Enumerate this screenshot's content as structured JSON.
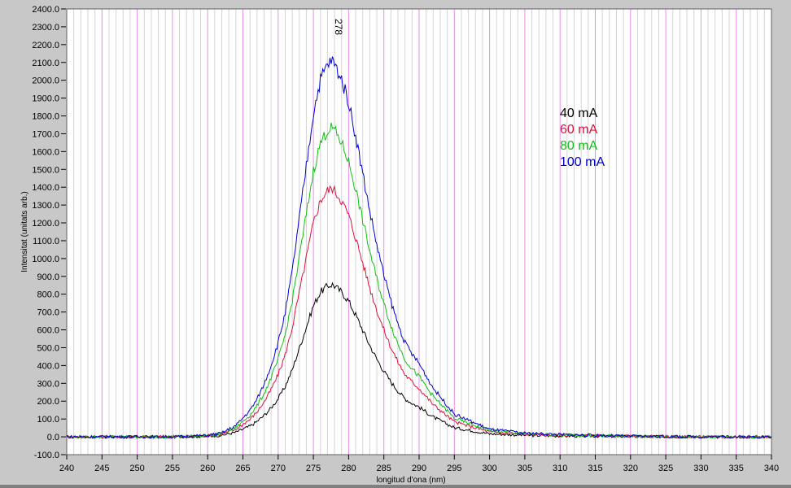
{
  "chart_data": {
    "type": "line",
    "title": "",
    "xlabel": "longitud d'ona (nm)",
    "ylabel": "Intensitat (unitats arb.)",
    "xlim": [
      240,
      340
    ],
    "ylim": [
      -100,
      2400
    ],
    "xticks": [
      240,
      245,
      250,
      255,
      260,
      265,
      270,
      275,
      280,
      285,
      290,
      295,
      300,
      305,
      310,
      315,
      320,
      325,
      330,
      335,
      340
    ],
    "yticks": [
      "-100.0",
      "0.0",
      "100.0",
      "200.0",
      "300.0",
      "400.0",
      "500.0",
      "600.0",
      "700.0",
      "800.0",
      "900.0",
      "1000.0",
      "1100.0",
      "1200.0",
      "1300.0",
      "1400.0",
      "1500.0",
      "1600.0",
      "1700.0",
      "1800.0",
      "1900.0",
      "2000.0",
      "2100.0",
      "2200.0",
      "2300.0",
      "2400.0"
    ],
    "grid": {
      "x_minor_step": 1,
      "x_major_step": 5,
      "major_color": "#e88ee8",
      "minor_color": "#d4d4d4"
    },
    "annotation": {
      "text": "278",
      "x": 278
    },
    "legend_position": "upper-right",
    "x": [
      240,
      245,
      250,
      255,
      260,
      262,
      264,
      265,
      266,
      267,
      268,
      269,
      270,
      271,
      272,
      273,
      274,
      275,
      276,
      277,
      277.7,
      278,
      279,
      280,
      281,
      282,
      283,
      284,
      285,
      286,
      287,
      288,
      289,
      290,
      292,
      295,
      300,
      305,
      310,
      320,
      330,
      340
    ],
    "series": [
      {
        "name": "40 mA",
        "color": "#000000",
        "values": [
          0,
          0,
          0,
          0,
          3,
          9,
          26,
          43,
          60,
          86,
          120,
          162,
          214,
          282,
          376,
          496,
          616,
          735,
          812,
          846,
          855,
          846,
          812,
          761,
          684,
          599,
          513,
          436,
          368,
          308,
          257,
          214,
          188,
          167,
          111,
          51,
          17,
          9,
          5,
          2,
          0,
          0
        ]
      },
      {
        "name": "60 mA",
        "color": "#e0103c",
        "values": [
          0,
          0,
          0,
          0,
          6,
          14,
          42,
          70,
          98,
          140,
          195,
          265,
          349,
          460,
          614,
          809,
          1004,
          1200,
          1325,
          1381,
          1395,
          1381,
          1325,
          1242,
          1116,
          977,
          837,
          711,
          600,
          502,
          419,
          349,
          307,
          272,
          181,
          84,
          28,
          14,
          8,
          3,
          0,
          0
        ]
      },
      {
        "name": "80 mA",
        "color": "#10c010",
        "values": [
          0,
          0,
          0,
          0,
          7,
          17,
          52,
          87,
          121,
          174,
          243,
          330,
          434,
          573,
          763,
          1006,
          1249,
          1492,
          1648,
          1718,
          1735,
          1718,
          1648,
          1544,
          1388,
          1215,
          1041,
          885,
          746,
          625,
          521,
          434,
          382,
          338,
          226,
          104,
          35,
          17,
          10,
          3,
          0,
          0
        ]
      },
      {
        "name": "100 mA",
        "color": "#0000d0",
        "values": [
          0,
          0,
          0,
          0,
          8,
          21,
          63,
          106,
          148,
          211,
          295,
          401,
          528,
          696,
          928,
          1224,
          1519,
          1815,
          2005,
          2089,
          2110,
          2089,
          2005,
          1878,
          1688,
          1477,
          1266,
          1076,
          907,
          760,
          633,
          528,
          464,
          411,
          274,
          127,
          42,
          21,
          13,
          4,
          0,
          0
        ]
      }
    ]
  }
}
